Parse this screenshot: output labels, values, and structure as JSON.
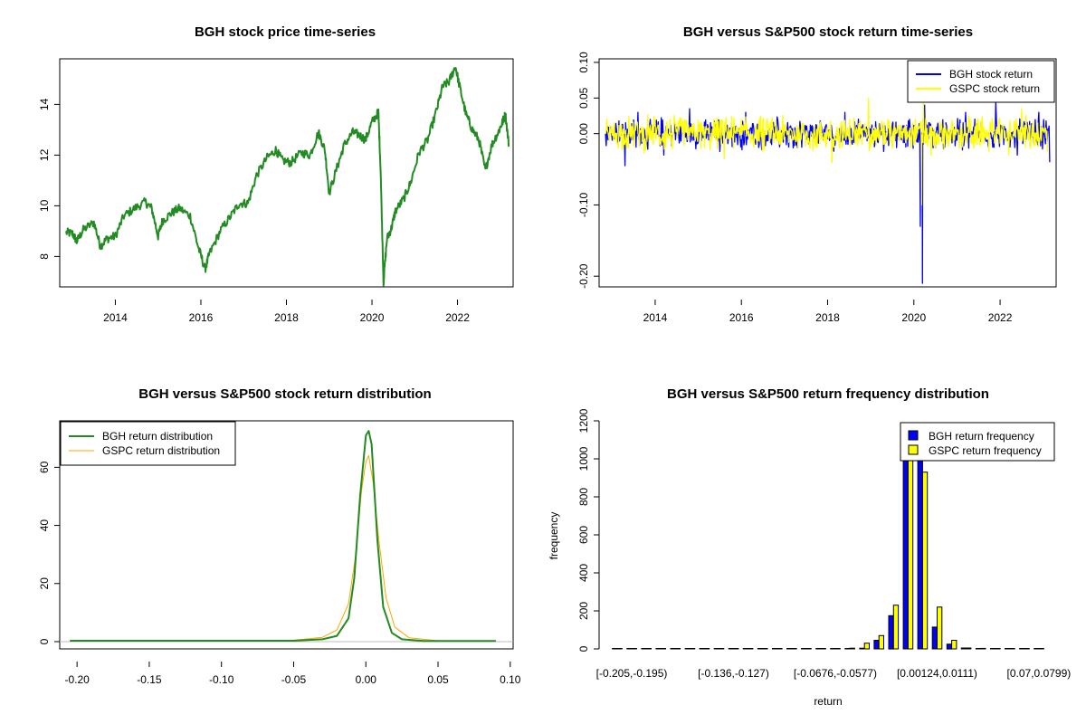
{
  "chart_data": [
    {
      "type": "line",
      "title": "BGH stock price time-series",
      "xlabel": "",
      "ylabel": "",
      "xlim": [
        2012.7,
        2023.3
      ],
      "ylim": [
        6.8,
        15.8
      ],
      "xticks": [
        2014,
        2016,
        2018,
        2020,
        2022
      ],
      "yticks": [
        8,
        10,
        12,
        14
      ],
      "series": [
        {
          "color": "#228b22",
          "points": [
            [
              2012.85,
              8.95
            ],
            [
              2013.0,
              8.9
            ],
            [
              2013.1,
              8.6
            ],
            [
              2013.25,
              9.05
            ],
            [
              2013.5,
              9.35
            ],
            [
              2013.65,
              8.4
            ],
            [
              2013.8,
              8.7
            ],
            [
              2014.0,
              8.8
            ],
            [
              2014.2,
              9.6
            ],
            [
              2014.45,
              9.9
            ],
            [
              2014.7,
              10.15
            ],
            [
              2014.85,
              9.9
            ],
            [
              2015.0,
              8.8
            ],
            [
              2015.1,
              9.4
            ],
            [
              2015.3,
              9.7
            ],
            [
              2015.5,
              9.9
            ],
            [
              2015.75,
              9.6
            ],
            [
              2015.95,
              8.3
            ],
            [
              2016.1,
              7.5
            ],
            [
              2016.2,
              8.1
            ],
            [
              2016.45,
              9.0
            ],
            [
              2016.7,
              9.6
            ],
            [
              2016.9,
              10.1
            ],
            [
              2017.1,
              10.1
            ],
            [
              2017.3,
              11.2
            ],
            [
              2017.55,
              11.9
            ],
            [
              2017.75,
              12.2
            ],
            [
              2017.9,
              11.8
            ],
            [
              2018.1,
              11.7
            ],
            [
              2018.35,
              12.1
            ],
            [
              2018.55,
              12.0
            ],
            [
              2018.75,
              12.9
            ],
            [
              2018.9,
              12.2
            ],
            [
              2019.0,
              10.5
            ],
            [
              2019.2,
              11.6
            ],
            [
              2019.35,
              12.4
            ],
            [
              2019.55,
              12.9
            ],
            [
              2019.7,
              12.8
            ],
            [
              2019.85,
              12.6
            ],
            [
              2020.0,
              13.3
            ],
            [
              2020.15,
              13.7
            ],
            [
              2020.2,
              11.5
            ],
            [
              2020.27,
              7.0
            ],
            [
              2020.35,
              8.7
            ],
            [
              2020.45,
              9.1
            ],
            [
              2020.55,
              9.8
            ],
            [
              2020.75,
              10.3
            ],
            [
              2020.9,
              10.9
            ],
            [
              2021.1,
              12.1
            ],
            [
              2021.3,
              12.6
            ],
            [
              2021.5,
              13.7
            ],
            [
              2021.65,
              14.7
            ],
            [
              2021.8,
              14.9
            ],
            [
              2021.95,
              15.5
            ],
            [
              2022.05,
              14.7
            ],
            [
              2022.2,
              13.6
            ],
            [
              2022.35,
              13.0
            ],
            [
              2022.5,
              12.6
            ],
            [
              2022.65,
              11.4
            ],
            [
              2022.8,
              12.4
            ],
            [
              2022.95,
              12.9
            ],
            [
              2023.05,
              13.3
            ],
            [
              2023.12,
              13.6
            ],
            [
              2023.2,
              12.4
            ]
          ]
        }
      ]
    },
    {
      "type": "line",
      "title": "BGH versus S&P500 stock return time-series",
      "xlabel": "",
      "ylabel": "",
      "xlim": [
        2012.7,
        2023.3
      ],
      "ylim": [
        -0.215,
        0.105
      ],
      "xticks": [
        2014,
        2016,
        2018,
        2020,
        2022
      ],
      "yticks": [
        -0.2,
        -0.1,
        0.0,
        0.05,
        0.1
      ],
      "ytick_labels": [
        "-0.20",
        "-0.10",
        "0.00",
        "0.05",
        "0.10"
      ],
      "legend_position": "top-right",
      "series": [
        {
          "name": "BGH stock return",
          "color": "#0000ff",
          "points": [
            [
              2012.85,
              0.0
            ],
            [
              2013.3,
              -0.045
            ],
            [
              2013.6,
              0.03
            ],
            [
              2014.2,
              -0.03
            ],
            [
              2014.8,
              0.035
            ],
            [
              2015.5,
              -0.025
            ],
            [
              2016.1,
              0.03
            ],
            [
              2017.2,
              -0.02
            ],
            [
              2018.4,
              0.03
            ],
            [
              2019.3,
              -0.025
            ],
            [
              2019.9,
              0.02
            ],
            [
              2020.15,
              -0.13
            ],
            [
              2020.2,
              -0.21
            ],
            [
              2020.25,
              0.04
            ],
            [
              2020.5,
              -0.02
            ],
            [
              2021.2,
              0.03
            ],
            [
              2021.9,
              0.045
            ],
            [
              2022.4,
              -0.03
            ],
            [
              2022.9,
              0.03
            ],
            [
              2023.15,
              -0.04
            ]
          ]
        },
        {
          "name": "GSPC stock return",
          "color": "#ffff00",
          "points": [
            [
              2012.85,
              0.0
            ],
            [
              2014.0,
              0.02
            ],
            [
              2015.6,
              -0.035
            ],
            [
              2016.0,
              0.02
            ],
            [
              2018.1,
              -0.04
            ],
            [
              2018.95,
              0.05
            ],
            [
              2019.5,
              -0.02
            ],
            [
              2020.18,
              -0.1
            ],
            [
              2020.22,
              0.045
            ],
            [
              2020.4,
              -0.03
            ],
            [
              2021.3,
              0.02
            ],
            [
              2022.2,
              -0.03
            ],
            [
              2022.5,
              0.035
            ],
            [
              2023.1,
              -0.025
            ]
          ]
        }
      ]
    },
    {
      "type": "line",
      "title": "BGH versus S&P500 stock return distribution",
      "xlabel": "",
      "ylabel": "",
      "xlim": [
        -0.212,
        0.102
      ],
      "ylim": [
        -2.5,
        76
      ],
      "xticks": [
        -0.2,
        -0.15,
        -0.1,
        -0.05,
        0.0,
        0.05,
        0.1
      ],
      "xtick_labels": [
        "-0.20",
        "-0.15",
        "-0.10",
        "-0.05",
        "0.00",
        "0.05",
        "0.10"
      ],
      "yticks": [
        0,
        20,
        40,
        60
      ],
      "legend_position": "top-left",
      "series": [
        {
          "name": "BGH return distribution",
          "color": "#228b22",
          "points": [
            [
              -0.205,
              0.3
            ],
            [
              -0.1,
              0.3
            ],
            [
              -0.05,
              0.3
            ],
            [
              -0.03,
              0.8
            ],
            [
              -0.02,
              2
            ],
            [
              -0.012,
              8
            ],
            [
              -0.008,
              22
            ],
            [
              -0.004,
              50
            ],
            [
              0.0,
              71
            ],
            [
              0.002,
              72.5
            ],
            [
              0.004,
              68
            ],
            [
              0.008,
              35
            ],
            [
              0.012,
              12
            ],
            [
              0.018,
              3
            ],
            [
              0.025,
              0.8
            ],
            [
              0.04,
              0.2
            ],
            [
              0.09,
              0.2
            ]
          ]
        },
        {
          "name": "GSPC return distribution",
          "color": "#ffa500",
          "points": [
            [
              -0.205,
              0.2
            ],
            [
              -0.1,
              0.2
            ],
            [
              -0.05,
              0.5
            ],
            [
              -0.03,
              1.5
            ],
            [
              -0.02,
              4
            ],
            [
              -0.012,
              13
            ],
            [
              -0.007,
              30
            ],
            [
              -0.003,
              52
            ],
            [
              0.0,
              62
            ],
            [
              0.002,
              64
            ],
            [
              0.005,
              55
            ],
            [
              0.009,
              35
            ],
            [
              0.014,
              15
            ],
            [
              0.02,
              5
            ],
            [
              0.03,
              1.3
            ],
            [
              0.05,
              0.3
            ],
            [
              0.09,
              0.2
            ]
          ]
        }
      ]
    },
    {
      "type": "bar",
      "title": "BGH versus S&P500 return frequency distribution",
      "xlabel": "return",
      "ylabel": "frequency",
      "ylim": [
        0,
        1200
      ],
      "yticks": [
        0,
        200,
        400,
        600,
        800,
        1000,
        1200
      ],
      "category_labels_shown": [
        "[-0.205,-0.195)",
        "[-0.136,-0.127)",
        "[-0.0676,-0.0577)",
        "[0.00124,0.0111)",
        "[0.07,0.0799)"
      ],
      "legend_position": "top-right",
      "series": [
        {
          "name": "BGH return frequency",
          "color": "#0000ff",
          "values": [
            1,
            0,
            0,
            0,
            0,
            0,
            0,
            0,
            0,
            0,
            0,
            0,
            0,
            0,
            1,
            0,
            2,
            4,
            45,
            175,
            1050,
            1050,
            115,
            25,
            5,
            2,
            1,
            1,
            1,
            1
          ]
        },
        {
          "name": "GSPC return frequency",
          "color": "#ffff00",
          "values": [
            0,
            0,
            0,
            0,
            0,
            0,
            0,
            0,
            0,
            0,
            0,
            0,
            0,
            0,
            0,
            0,
            4,
            30,
            70,
            230,
            1050,
            930,
            220,
            45,
            5,
            3,
            2,
            1,
            1,
            0
          ]
        }
      ]
    }
  ]
}
